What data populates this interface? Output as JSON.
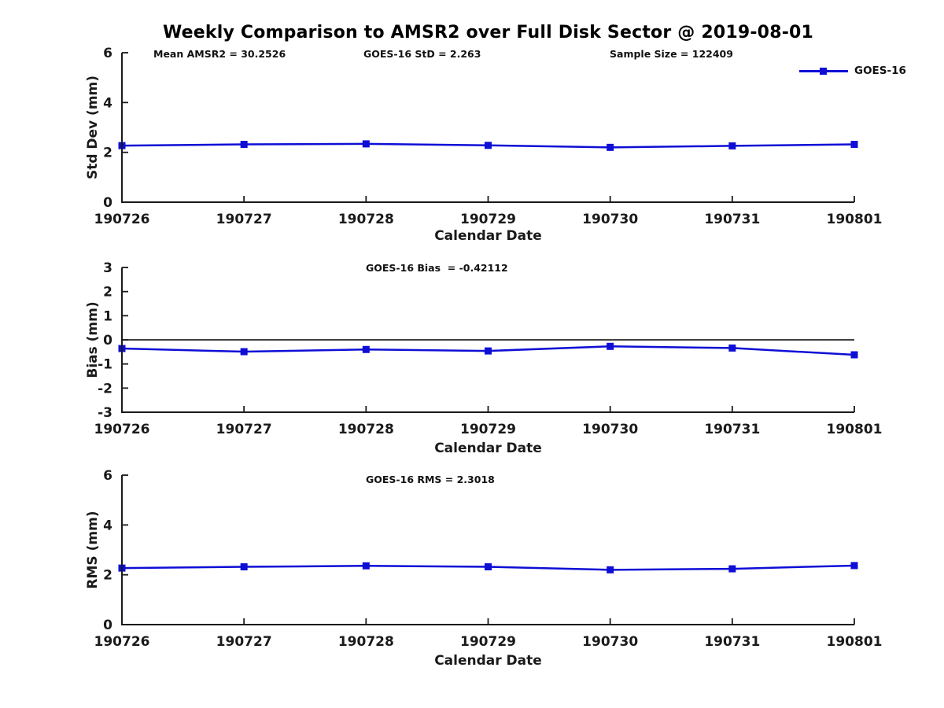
{
  "title": "Weekly Comparison to AMSR2 over Full Disk Sector @ 2019-08-01",
  "colors": {
    "series": "#0e0ed6",
    "axis": "#1a1a1a",
    "text": "#1a1a1a",
    "zero_line": "#000000",
    "background": "#ffffff"
  },
  "chart_data": [
    {
      "type": "line",
      "title": "",
      "annotations": [
        "Mean AMSR2 = 30.2526",
        "GOES-16 StD = 2.263",
        "Sample Size = 122409"
      ],
      "x": [
        "190726",
        "190727",
        "190728",
        "190729",
        "190730",
        "190731",
        "190801"
      ],
      "series": [
        {
          "name": "GOES-16",
          "marker": "square",
          "values": [
            2.27,
            2.32,
            2.34,
            2.28,
            2.2,
            2.26,
            2.32
          ]
        }
      ],
      "xlabel": "Calendar Date",
      "ylabel": "Std Dev (mm)",
      "ylim": [
        0,
        6
      ],
      "yticks": [
        0,
        2,
        4,
        6
      ],
      "grid": false,
      "legend": {
        "label": "GOES-16",
        "position": "top-right"
      }
    },
    {
      "type": "line",
      "title": "",
      "annotations": [
        "GOES-16 Bias  = -0.42112"
      ],
      "x": [
        "190726",
        "190727",
        "190728",
        "190729",
        "190730",
        "190731",
        "190801"
      ],
      "series": [
        {
          "name": "GOES-16",
          "marker": "square",
          "values": [
            -0.36,
            -0.49,
            -0.4,
            -0.46,
            -0.27,
            -0.34,
            -0.62
          ]
        }
      ],
      "xlabel": "Calendar Date",
      "ylabel": "Bias (mm)",
      "ylim": [
        -3,
        3
      ],
      "yticks": [
        3,
        2,
        1,
        0,
        -1,
        -2,
        -3
      ],
      "zero_line": true,
      "grid": false
    },
    {
      "type": "line",
      "title": "",
      "annotations": [
        "GOES-16 RMS = 2.3018"
      ],
      "x": [
        "190726",
        "190727",
        "190728",
        "190729",
        "190730",
        "190731",
        "190801"
      ],
      "series": [
        {
          "name": "GOES-16",
          "marker": "square",
          "values": [
            2.27,
            2.32,
            2.36,
            2.32,
            2.2,
            2.24,
            2.37
          ]
        }
      ],
      "xlabel": "Calendar Date",
      "ylabel": "RMS (mm)",
      "ylim": [
        0,
        6
      ],
      "yticks": [
        0,
        2,
        4,
        6
      ],
      "grid": false
    }
  ]
}
